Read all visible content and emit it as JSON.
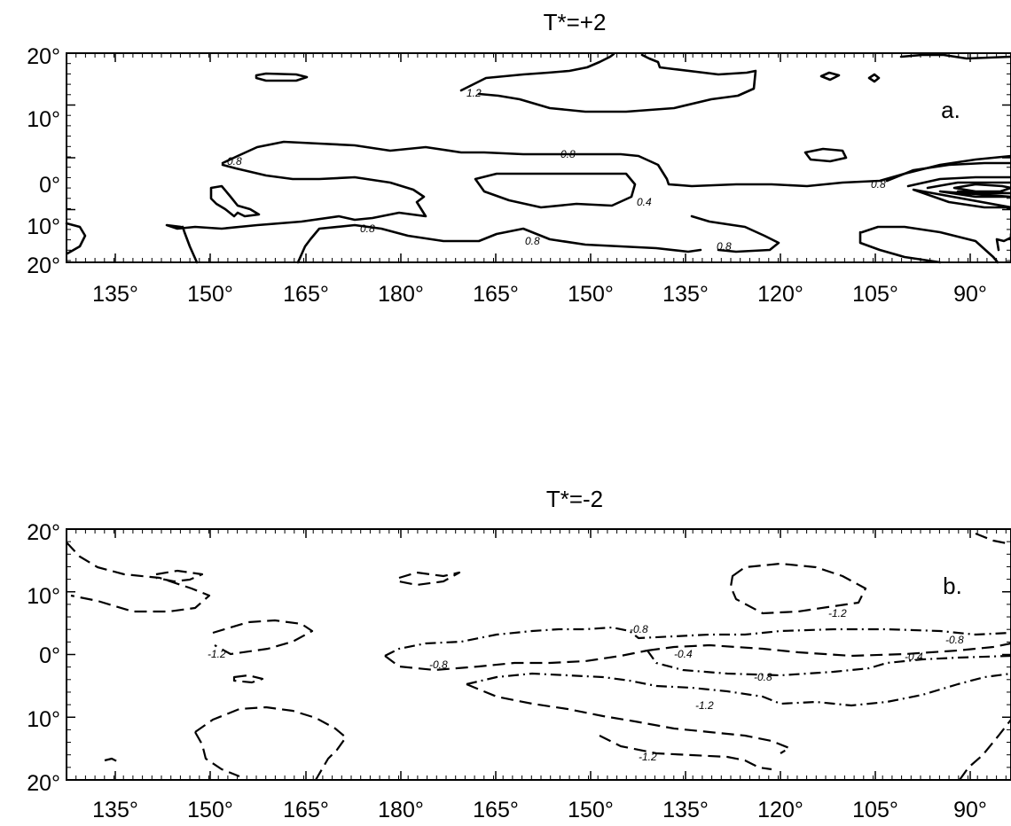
{
  "chart_data": [
    {
      "type": "contour",
      "panel": "a",
      "title": "T*=+2",
      "panel_label": "a.",
      "line_style": "solid",
      "x_tick_labels": [
        "135°",
        "150°",
        "165°",
        "180°",
        "165°",
        "150°",
        "135°",
        "120°",
        "105°",
        "90°"
      ],
      "y_tick_labels": [
        "20°",
        "10°",
        "0°",
        "10°",
        "20°"
      ],
      "x_axis_longitude_east": [
        128,
        272
      ],
      "y_range": [
        -20,
        20
      ],
      "contour_levels": [
        0.4,
        0.8,
        1.2
      ],
      "contour_labels": [
        "1.2",
        "0.8",
        "0.8",
        "0.8",
        "0.8",
        "0.4",
        "0.8",
        "0.8",
        "0.8"
      ]
    },
    {
      "type": "contour",
      "panel": "b",
      "title": "T*=-2",
      "panel_label": "b.",
      "line_style": "dashed",
      "x_tick_labels": [
        "135°",
        "150°",
        "165°",
        "180°",
        "165°",
        "150°",
        "135°",
        "120°",
        "105°",
        "90°"
      ],
      "y_tick_labels": [
        "20°",
        "10°",
        "0°",
        "10°",
        "20°"
      ],
      "x_axis_longitude_east": [
        128,
        272
      ],
      "y_range": [
        -20,
        20
      ],
      "contour_levels": [
        -0.4,
        -0.8,
        -1.2
      ],
      "contour_labels": [
        "-1.2",
        "-1.2",
        "-0.8",
        "-0.8",
        "-0.8",
        "-0.4",
        "-0.4",
        "-0.8",
        "-1.2",
        "-1.2"
      ]
    }
  ]
}
